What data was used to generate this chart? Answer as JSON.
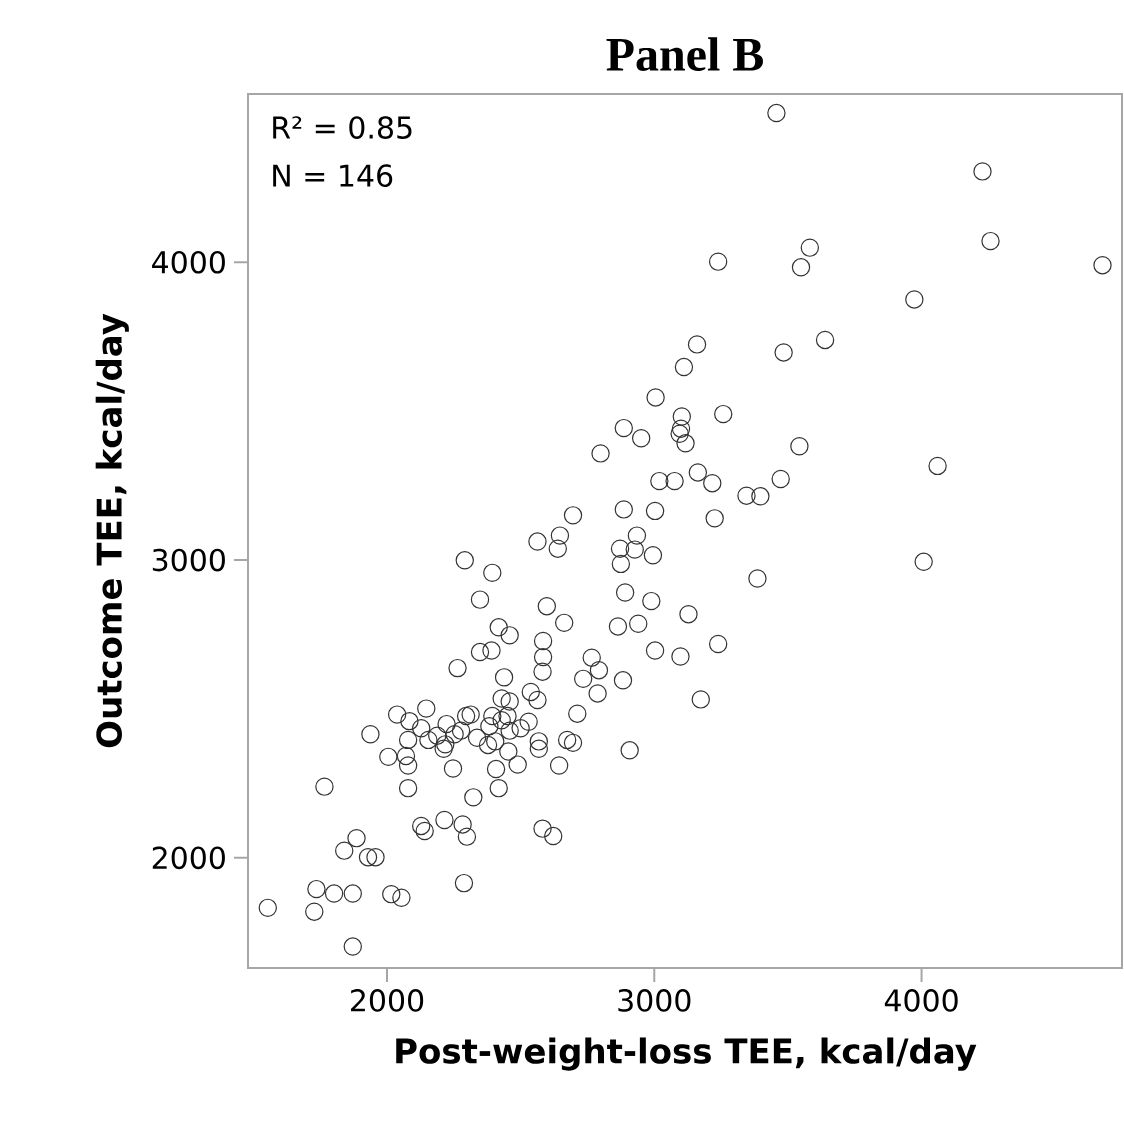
{
  "chart_data": {
    "type": "scatter",
    "title": "Panel B",
    "xlabel": "Post-weight-loss TEE, kcal/day",
    "ylabel": "Outcome TEE, kcal/day",
    "annotations": [
      "R² =  0.85",
      "N  =   146"
    ],
    "xlim": [
      1480,
      4750
    ],
    "ylim": [
      1630,
      4565
    ],
    "xticks": [
      2000,
      3000,
      4000
    ],
    "yticks": [
      2000,
      3000,
      4000
    ],
    "marker": "circle",
    "grid": false,
    "series": [
      {
        "color": "#333333",
        "x": [
          3457,
          4228,
          4258,
          4677,
          3239,
          3582,
          3549,
          3973,
          3639,
          3484,
          3160,
          3111,
          3005,
          3103,
          3095,
          3117,
          3258,
          2886,
          2951,
          2799,
          3543,
          4060,
          3163,
          3217,
          3019,
          3076,
          3473,
          3345,
          3397,
          2886,
          3003,
          3226,
          2696,
          2647,
          2563,
          2639,
          2872,
          2935,
          2927,
          2875,
          2995,
          2291,
          4008,
          2394,
          3386,
          2348,
          2891,
          2989,
          2598,
          3128,
          2418,
          2459,
          2663,
          2864,
          2940,
          2584,
          3239,
          2348,
          2391,
          3003,
          2584,
          3098,
          2264,
          2582,
          2766,
          2793,
          2734,
          2883,
          2438,
          3174,
          2538,
          2563,
          2788,
          2429,
          2459,
          2147,
          2038,
          2084,
          2313,
          2394,
          2429,
          2530,
          2712,
          1938,
          2128,
          2223,
          2188,
          2253,
          2277,
          2079,
          2155,
          2337,
          2405,
          2459,
          2212,
          2378,
          2454,
          2568,
          2568,
          2674,
          2696,
          2908,
          2005,
          2071,
          2079,
          2247,
          2408,
          2489,
          2644,
          2079,
          1766,
          2323,
          2418,
          2128,
          2141,
          2215,
          2283,
          2299,
          2582,
          2622,
          1886,
          1840,
          1929,
          1957,
          2288,
          1736,
          1802,
          1872,
          2016,
          2054,
          1554,
          1728,
          1872,
          3100,
          2383,
          2218,
          2500,
          2296,
          2451
        ],
        "values": [
          4501,
          4305,
          4071,
          3990,
          4002,
          4049,
          3983,
          3875,
          3739,
          3697,
          3724,
          3648,
          3546,
          3482,
          3424,
          3392,
          3490,
          3443,
          3409,
          3358,
          3382,
          3316,
          3294,
          3258,
          3265,
          3265,
          3272,
          3216,
          3214,
          3170,
          3165,
          3140,
          3150,
          3082,
          3062,
          3038,
          3038,
          3082,
          3035,
          2987,
          3016,
          2999,
          2994,
          2957,
          2938,
          2867,
          2891,
          2862,
          2845,
          2818,
          2774,
          2747,
          2789,
          2777,
          2786,
          2728,
          2718,
          2691,
          2696,
          2696,
          2674,
          2676,
          2637,
          2625,
          2672,
          2630,
          2601,
          2596,
          2606,
          2532,
          2557,
          2530,
          2552,
          2535,
          2525,
          2501,
          2481,
          2459,
          2481,
          2476,
          2462,
          2457,
          2484,
          2415,
          2435,
          2449,
          2410,
          2415,
          2427,
          2396,
          2396,
          2403,
          2391,
          2427,
          2366,
          2379,
          2357,
          2391,
          2366,
          2396,
          2386,
          2361,
          2339,
          2342,
          2310,
          2300,
          2298,
          2313,
          2310,
          2234,
          2239,
          2203,
          2234,
          2107,
          2090,
          2127,
          2112,
          2071,
          2098,
          2073,
          2066,
          2024,
          2002,
          2002,
          1915,
          1895,
          1880,
          1880,
          1878,
          1866,
          1832,
          1819,
          1702,
          3441,
          2442,
          2381,
          2435,
          2476,
          2476
        ]
      }
    ]
  }
}
